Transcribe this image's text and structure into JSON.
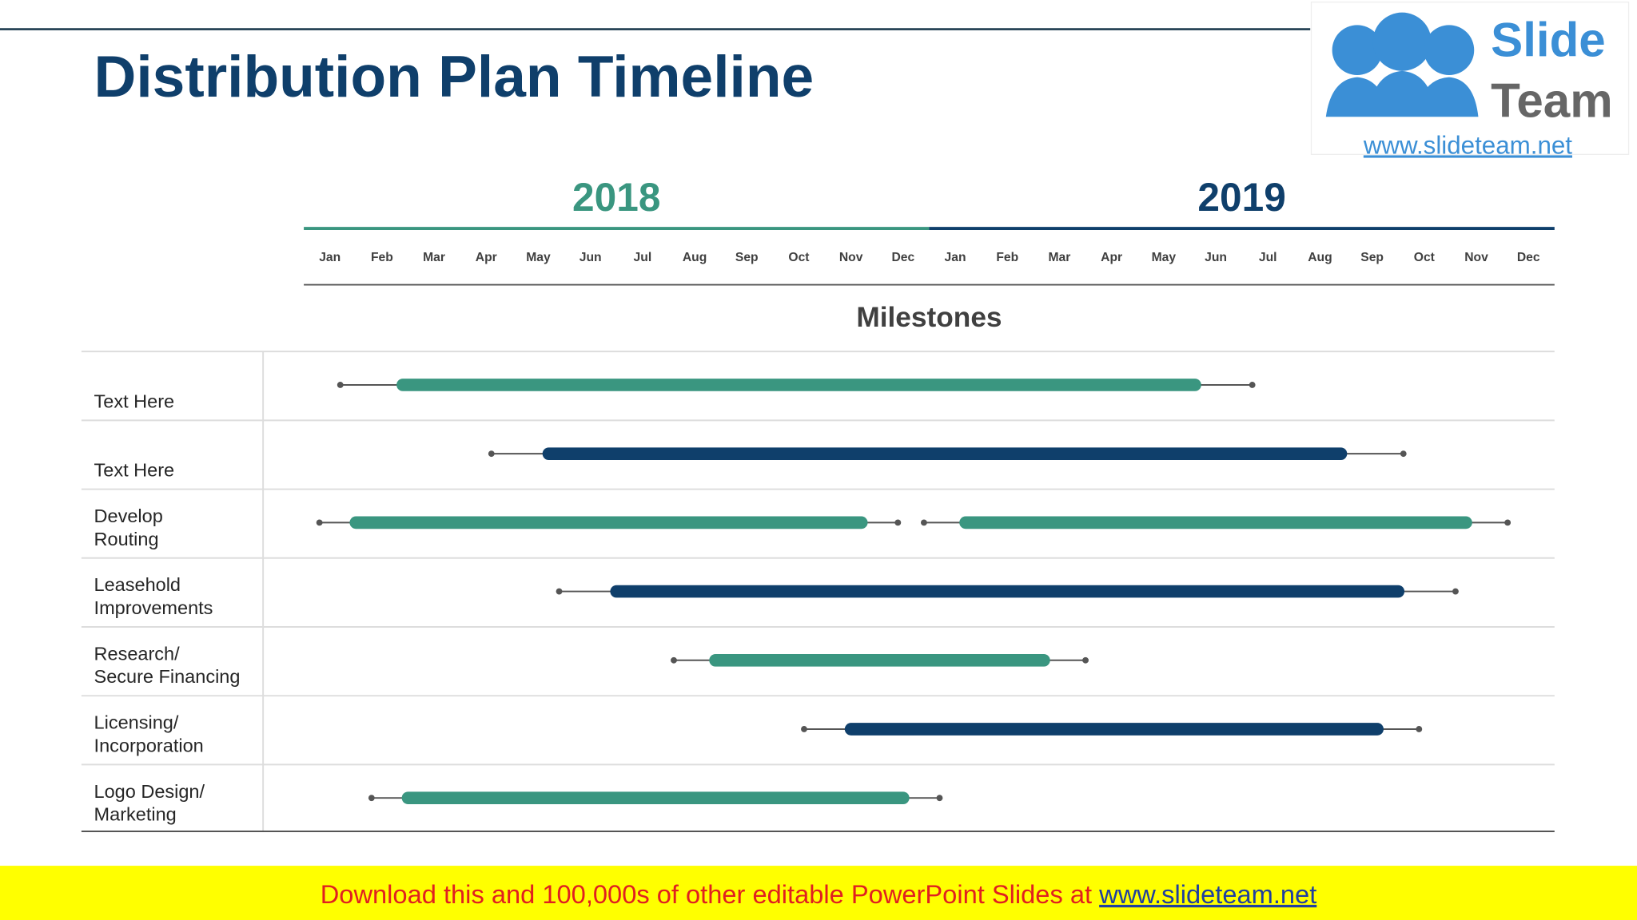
{
  "chart_data": {
    "type": "gantt",
    "title": "Distribution Plan Timeline",
    "subtitle": "Milestones",
    "years": [
      {
        "label": "2018",
        "color": "#3a9680"
      },
      {
        "label": "2019",
        "color": "#0f3f6b"
      }
    ],
    "categories": [
      "Jan",
      "Feb",
      "Mar",
      "Apr",
      "May",
      "Jun",
      "Jul",
      "Aug",
      "Sep",
      "Oct",
      "Nov",
      "Dec",
      "Jan",
      "Feb",
      "Mar",
      "Apr",
      "May",
      "Jun",
      "Jul",
      "Aug",
      "Sep",
      "Oct",
      "Nov",
      "Dec"
    ],
    "xlim": [
      0,
      24
    ],
    "tasks": [
      {
        "label": [
          "Text Here"
        ],
        "color": "#3a9680",
        "segments": [
          {
            "start": 0.7,
            "bar_start": 1.9,
            "bar_end": 17.1,
            "end": 18.2
          }
        ]
      },
      {
        "label": [
          "Text Here"
        ],
        "color": "#0f3f6b",
        "segments": [
          {
            "start": 3.6,
            "bar_start": 4.7,
            "bar_end": 19.9,
            "end": 21.1
          }
        ]
      },
      {
        "label": [
          "Develop",
          "Routing"
        ],
        "color": "#3a9680",
        "segments": [
          {
            "start": 0.3,
            "bar_start": 1.0,
            "bar_end": 10.7,
            "end": 11.4
          },
          {
            "start": 11.9,
            "bar_start": 12.7,
            "bar_end": 22.3,
            "end": 23.1
          }
        ]
      },
      {
        "label": [
          "Leasehold",
          "Improvements"
        ],
        "color": "#0f3f6b",
        "segments": [
          {
            "start": 4.9,
            "bar_start": 6.0,
            "bar_end": 21.0,
            "end": 22.1
          }
        ]
      },
      {
        "label": [
          "Research/",
          "Secure Financing"
        ],
        "color": "#3a9680",
        "segments": [
          {
            "start": 7.1,
            "bar_start": 7.9,
            "bar_end": 14.2,
            "end": 15.0
          }
        ]
      },
      {
        "label": [
          "Licensing/",
          "Incorporation"
        ],
        "color": "#0f3f6b",
        "segments": [
          {
            "start": 9.6,
            "bar_start": 10.5,
            "bar_end": 20.6,
            "end": 21.4
          }
        ]
      },
      {
        "label": [
          "Logo Design/",
          "Marketing"
        ],
        "color": "#3a9680",
        "segments": [
          {
            "start": 1.3,
            "bar_start": 2.0,
            "bar_end": 11.5,
            "end": 12.2
          }
        ]
      }
    ]
  },
  "logo": {
    "line1": "Slide",
    "line2": "Team",
    "url": "www.slideteam.net"
  },
  "footer": {
    "text": "Download this and 100,000s of other editable PowerPoint Slides at ",
    "link": "www.slideteam.net"
  }
}
